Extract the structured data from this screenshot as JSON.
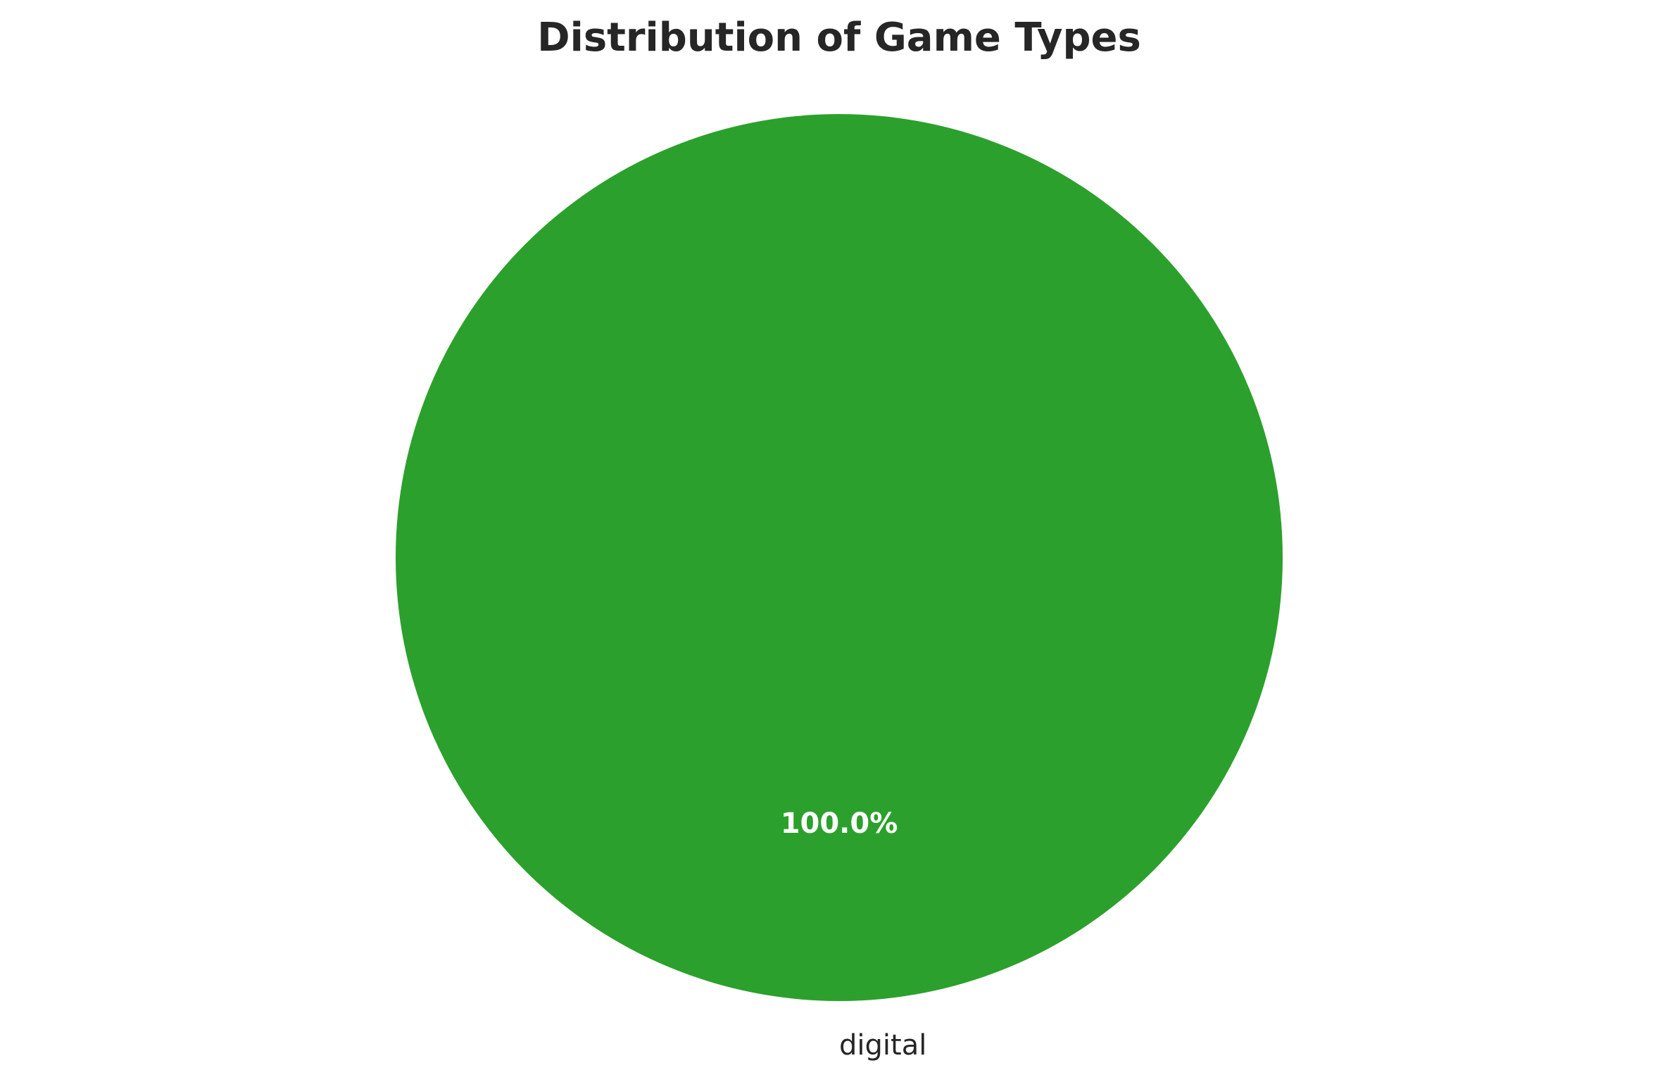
{
  "chart_data": {
    "type": "pie",
    "title": "Distribution of Game Types",
    "categories": [
      "digital"
    ],
    "values": [
      100.0
    ],
    "percent_labels": [
      "100.0%"
    ],
    "colors": [
      "#2ca02c"
    ],
    "start_angle": 90,
    "counterclockwise": true,
    "legend": "none"
  }
}
